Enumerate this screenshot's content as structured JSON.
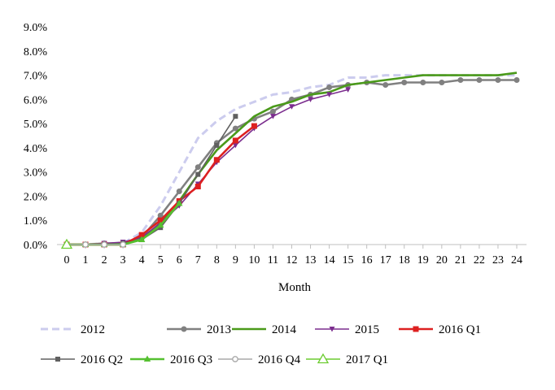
{
  "chart_data": {
    "type": "line",
    "xlabel": "Month",
    "ylabel": "",
    "ylim": [
      0,
      9
    ],
    "y_unit": "%",
    "y_ticks": [
      0,
      1,
      2,
      3,
      4,
      5,
      6,
      7,
      8,
      9
    ],
    "y_tick_labels": [
      "0.0%",
      "1.0%",
      "2.0%",
      "3.0%",
      "4.0%",
      "5.0%",
      "6.0%",
      "7.0%",
      "8.0%",
      "9.0%"
    ],
    "x_ticks": [
      0,
      1,
      2,
      3,
      4,
      5,
      6,
      7,
      8,
      9,
      10,
      11,
      12,
      13,
      14,
      15,
      16,
      17,
      18,
      19,
      20,
      21,
      22,
      23,
      24
    ],
    "x_tick_labels": [
      "0",
      "1",
      "2",
      "3",
      "4",
      "5",
      "6",
      "7",
      "8",
      "9",
      "10",
      "11",
      "12",
      "13",
      "14",
      "15",
      "16",
      "17",
      "18",
      "19",
      "20",
      "21",
      "22",
      "23",
      "24"
    ],
    "grid": false,
    "legend_position": "bottom",
    "series": [
      {
        "name": "2012",
        "color": "#ccccee",
        "style": "dashed",
        "marker": "none",
        "x": [
          0,
          1,
          2,
          3,
          4,
          5,
          6,
          7,
          8,
          9,
          10,
          11,
          12,
          13,
          14,
          15,
          16,
          17,
          18,
          19,
          20,
          21,
          22,
          23,
          24
        ],
        "values": [
          0.0,
          0.0,
          0.05,
          0.05,
          0.5,
          1.6,
          3.0,
          4.4,
          5.1,
          5.6,
          5.9,
          6.2,
          6.3,
          6.5,
          6.6,
          6.9,
          6.9,
          7.0,
          7.0,
          7.0,
          7.0,
          7.0,
          7.0,
          7.0,
          7.0
        ]
      },
      {
        "name": "2013",
        "color": "#808080",
        "style": "solid",
        "marker": "circle",
        "x": [
          0,
          1,
          2,
          3,
          4,
          5,
          6,
          7,
          8,
          9,
          10,
          11,
          12,
          13,
          14,
          15,
          16,
          17,
          18,
          19,
          20,
          21,
          22,
          23,
          24
        ],
        "values": [
          0.0,
          0.0,
          0.05,
          0.05,
          0.3,
          1.2,
          2.2,
          3.2,
          4.2,
          4.8,
          5.2,
          5.5,
          6.0,
          6.2,
          6.5,
          6.6,
          6.7,
          6.6,
          6.7,
          6.7,
          6.7,
          6.8,
          6.8,
          6.8,
          6.8
        ]
      },
      {
        "name": "2014",
        "color": "#4a9a1a",
        "style": "solid",
        "marker": "none",
        "x": [
          0,
          1,
          2,
          3,
          4,
          5,
          6,
          7,
          8,
          9,
          10,
          11,
          12,
          13,
          14,
          15,
          16,
          17,
          18,
          19,
          20,
          21,
          22,
          23,
          24
        ],
        "values": [
          0.0,
          0.0,
          0.0,
          0.05,
          0.2,
          0.9,
          1.8,
          2.9,
          3.9,
          4.6,
          5.3,
          5.7,
          5.9,
          6.2,
          6.3,
          6.6,
          6.7,
          6.8,
          6.9,
          7.0,
          7.0,
          7.0,
          7.0,
          7.0,
          7.1
        ]
      },
      {
        "name": "2015",
        "color": "#7b2d8e",
        "style": "solid",
        "marker": "triangle-down",
        "x": [
          0,
          1,
          2,
          3,
          4,
          5,
          6,
          7,
          8,
          9,
          10,
          11,
          12,
          13,
          14,
          15
        ],
        "values": [
          0.0,
          0.0,
          0.05,
          0.1,
          0.3,
          0.9,
          1.6,
          2.5,
          3.4,
          4.1,
          4.8,
          5.3,
          5.7,
          6.0,
          6.2,
          6.4
        ]
      },
      {
        "name": "2016 Q1",
        "color": "#dd2020",
        "style": "solid",
        "marker": "square",
        "x": [
          0,
          1,
          2,
          3,
          4,
          5,
          6,
          7,
          8,
          9,
          10
        ],
        "values": [
          0.0,
          0.0,
          0.0,
          0.0,
          0.4,
          1.0,
          1.8,
          2.4,
          3.5,
          4.3,
          4.9
        ]
      },
      {
        "name": "2016 Q2",
        "color": "#606060",
        "style": "solid",
        "marker": "square-small",
        "x": [
          0,
          1,
          2,
          3,
          4,
          5,
          6,
          7,
          8,
          9
        ],
        "values": [
          0.0,
          0.0,
          0.0,
          0.05,
          0.2,
          0.7,
          1.7,
          2.9,
          4.1,
          5.3
        ]
      },
      {
        "name": "2016 Q3",
        "color": "#55c030",
        "style": "solid",
        "marker": "triangle",
        "x": [
          0,
          1,
          2,
          3,
          4,
          5,
          6
        ],
        "values": [
          0.0,
          0.0,
          0.0,
          0.0,
          0.2,
          0.8,
          1.7
        ]
      },
      {
        "name": "2016 Q4",
        "color": "#a8a8a8",
        "style": "solid",
        "marker": "circle-open",
        "x": [
          0,
          1,
          2,
          3
        ],
        "values": [
          0.0,
          0.0,
          0.0,
          0.0
        ]
      },
      {
        "name": "2017 Q1",
        "color": "#6ccc30",
        "style": "solid",
        "marker": "triangle-open",
        "x": [
          0
        ],
        "values": [
          0.0
        ]
      }
    ]
  }
}
